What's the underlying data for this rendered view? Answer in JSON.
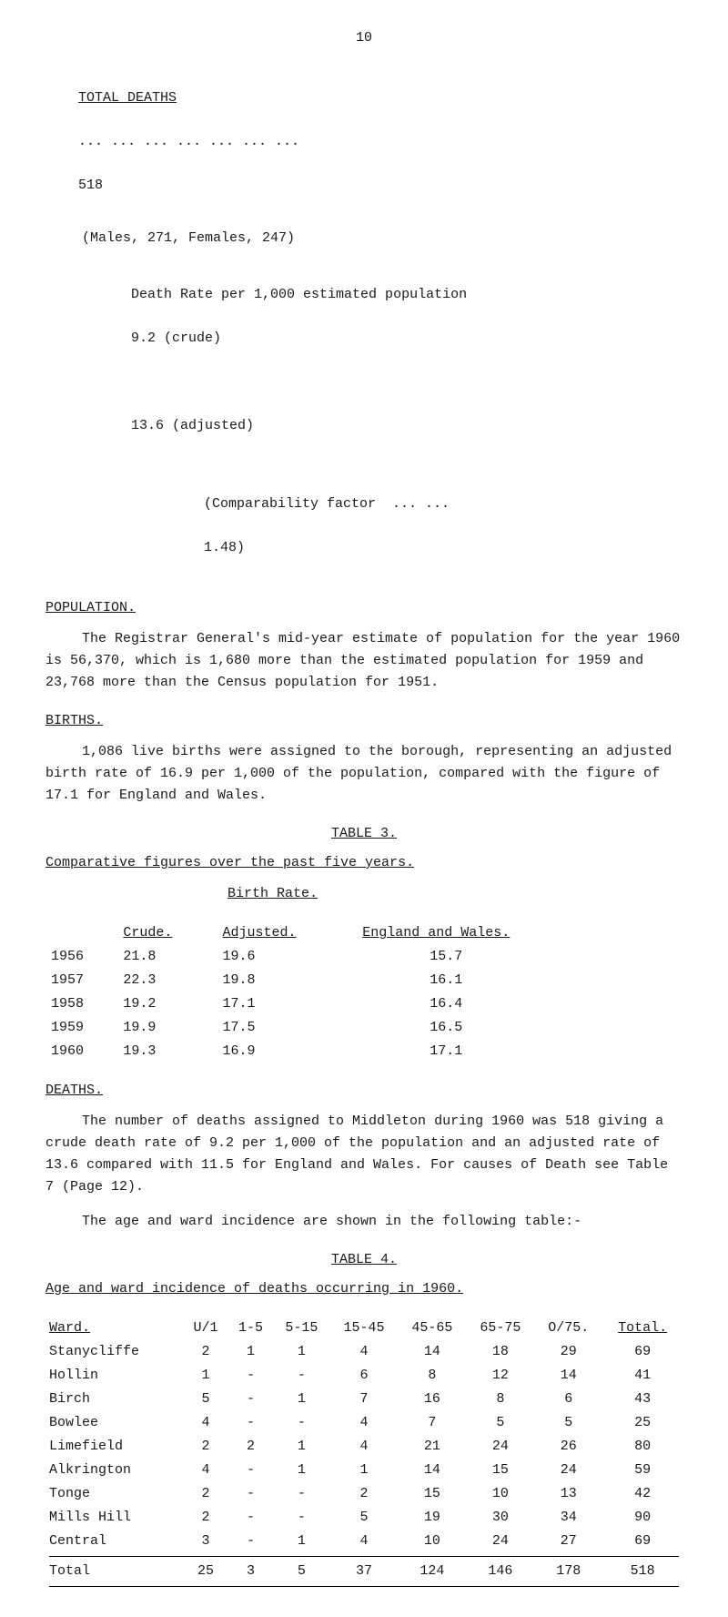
{
  "page_number": "10",
  "total_deaths": {
    "label": "TOTAL DEATHS",
    "dots": "... ... ... ... ... ... ...",
    "value": "518",
    "breakdown": "(Males, 271,   Females, 247)",
    "death_rate_label": "Death Rate per 1,000 estimated population",
    "crude": "9.2 (crude)",
    "adjusted": "13.6 (adjusted)",
    "comp_label": "(Comparability factor  ... ...",
    "comp_value": "1.48)"
  },
  "population": {
    "heading": "POPULATION.",
    "para": "The Registrar General's mid-year estimate of population for the year 1960 is 56,370, which is 1,680 more than the estimated population for 1959 and 23,768 more than the Census population for 1951."
  },
  "births": {
    "heading": "BIRTHS.",
    "para": "1,086 live births were assigned to the borough, representing an adjusted birth rate of 16.9 per 1,000 of the population, compared with the figure of 17.1 for England and Wales."
  },
  "table3": {
    "title": "TABLE  3.",
    "subtitle": "Comparative figures over the past five years.",
    "rate_heading": "Birth Rate.",
    "col_crude": "Crude.",
    "col_adjusted": "Adjusted.",
    "col_ew": "England and Wales.",
    "rows": [
      {
        "year": "1956",
        "crude": "21.8",
        "adjusted": "19.6",
        "ew": "15.7"
      },
      {
        "year": "1957",
        "crude": "22.3",
        "adjusted": "19.8",
        "ew": "16.1"
      },
      {
        "year": "1958",
        "crude": "19.2",
        "adjusted": "17.1",
        "ew": "16.4"
      },
      {
        "year": "1959",
        "crude": "19.9",
        "adjusted": "17.5",
        "ew": "16.5"
      },
      {
        "year": "1960",
        "crude": "19.3",
        "adjusted": "16.9",
        "ew": "17.1"
      }
    ]
  },
  "deaths": {
    "heading": "DEATHS.",
    "para1": "The number of deaths assigned to Middleton during 1960 was 518 giving a crude death rate of 9.2 per 1,000 of the population and an adjusted rate of 13.6 compared with 11.5 for England and Wales.  For causes of Death see Table 7 (Page 12).",
    "para2": "The age and ward incidence are shown in the following table:-"
  },
  "table4": {
    "title": "TABLE  4.",
    "subtitle": "Age and ward incidence of deaths occurring in 1960.",
    "headers": [
      "Ward.",
      "U/1",
      "1-5",
      "5-15",
      "15-45",
      "45-65",
      "65-75",
      "O/75.",
      "Total."
    ],
    "rows": [
      {
        "ward": "Stanycliffe",
        "v": [
          "2",
          "1",
          "1",
          "4",
          "14",
          "18",
          "29",
          "69"
        ]
      },
      {
        "ward": "Hollin",
        "v": [
          "1",
          "-",
          "-",
          "6",
          "8",
          "12",
          "14",
          "41"
        ]
      },
      {
        "ward": "Birch",
        "v": [
          "5",
          "-",
          "1",
          "7",
          "16",
          "8",
          "6",
          "43"
        ]
      },
      {
        "ward": "Bowlee",
        "v": [
          "4",
          "-",
          "-",
          "4",
          "7",
          "5",
          "5",
          "25"
        ]
      },
      {
        "ward": "Limefield",
        "v": [
          "2",
          "2",
          "1",
          "4",
          "21",
          "24",
          "26",
          "80"
        ]
      },
      {
        "ward": "Alkrington",
        "v": [
          "4",
          "-",
          "1",
          "1",
          "14",
          "15",
          "24",
          "59"
        ]
      },
      {
        "ward": "Tonge",
        "v": [
          "2",
          "-",
          "-",
          "2",
          "15",
          "10",
          "13",
          "42"
        ]
      },
      {
        "ward": "Mills Hill",
        "v": [
          "2",
          "-",
          "-",
          "5",
          "19",
          "30",
          "34",
          "90"
        ]
      },
      {
        "ward": "Central",
        "v": [
          "3",
          "-",
          "1",
          "4",
          "10",
          "24",
          "27",
          "69"
        ]
      }
    ],
    "total_label": "Total",
    "totals": [
      "25",
      "3",
      "5",
      "37",
      "124",
      "146",
      "178",
      "518"
    ]
  }
}
